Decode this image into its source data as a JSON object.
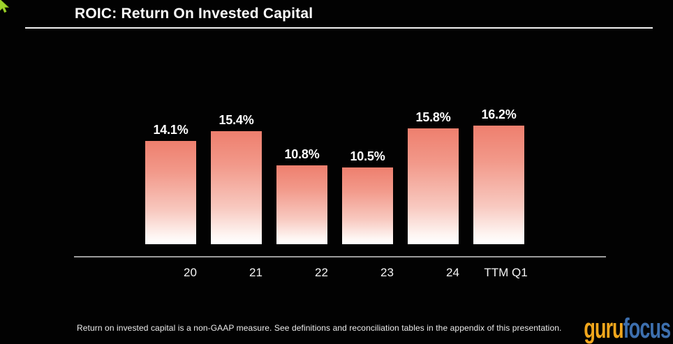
{
  "page": {
    "title": "ROIC: Return On Invested Capital",
    "footnote": "Return on invested capital is a non-GAAP measure. See definitions and reconciliation tables in the appendix of this presentation.",
    "logo": {
      "part1": "guru",
      "part2": "focus",
      "part1_color": "#f2a71c",
      "part2_color": "#3d6fae"
    },
    "cursor_color": "#9ed32b"
  },
  "chart_data": {
    "type": "bar",
    "title": "ROIC: Return On Invested Capital",
    "categories": [
      "20",
      "21",
      "22",
      "23",
      "24",
      "TTM Q1"
    ],
    "values": [
      14.1,
      15.4,
      10.8,
      10.5,
      15.8,
      16.2
    ],
    "value_labels": [
      "14.1%",
      "15.4%",
      "10.8%",
      "10.5%",
      "15.8%",
      "16.2%"
    ],
    "unit": "%",
    "ylim": [
      0,
      16.8
    ],
    "xlabel": "",
    "ylabel": "",
    "grid": false,
    "legend": false,
    "bar_gradient_top": "#ee7f6e",
    "bar_gradient_bottom": "#ffffff",
    "value_label_color": "#ffffff",
    "tick_label_color": "#f5f5f5",
    "axis_line_color": "#9c9c9c",
    "background_color": "#020202"
  }
}
